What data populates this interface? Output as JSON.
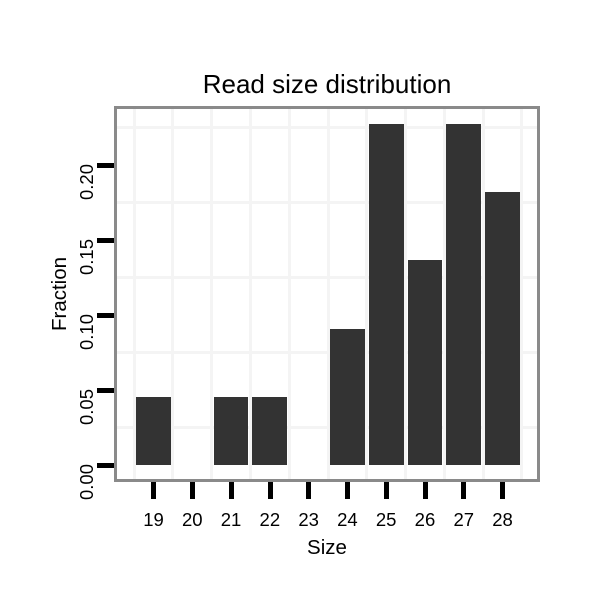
{
  "chart_data": {
    "type": "bar",
    "title": "Read size distribution",
    "xlabel": "Size",
    "ylabel": "Fraction",
    "categories": [
      "19",
      "20",
      "21",
      "22",
      "23",
      "24",
      "25",
      "26",
      "27",
      "28"
    ],
    "values": [
      0.0455,
      0,
      0.0455,
      0.0455,
      0,
      0.0909,
      0.2273,
      0.1364,
      0.2273,
      0.1818
    ],
    "y_ticks": [
      {
        "label": "0.00",
        "value": 0
      },
      {
        "label": "0.05",
        "value": 0.05
      },
      {
        "label": "0.10",
        "value": 0.1
      },
      {
        "label": "0.15",
        "value": 0.15
      },
      {
        "label": "0.20",
        "value": 0.2
      }
    ],
    "ylim": [
      -0.0093,
      0.2373
    ],
    "grid": "on",
    "grid_note": "faint gridlines: horizontal midway between y ticks (0.025 steps), vertical at category boundaries",
    "legend": "none",
    "colors": {
      "bar": "#333333",
      "panel_border": "#8a8a8a",
      "gridline": "#f4f4f4",
      "tick": "#000000",
      "text": "#000000",
      "background": "#ffffff"
    }
  }
}
